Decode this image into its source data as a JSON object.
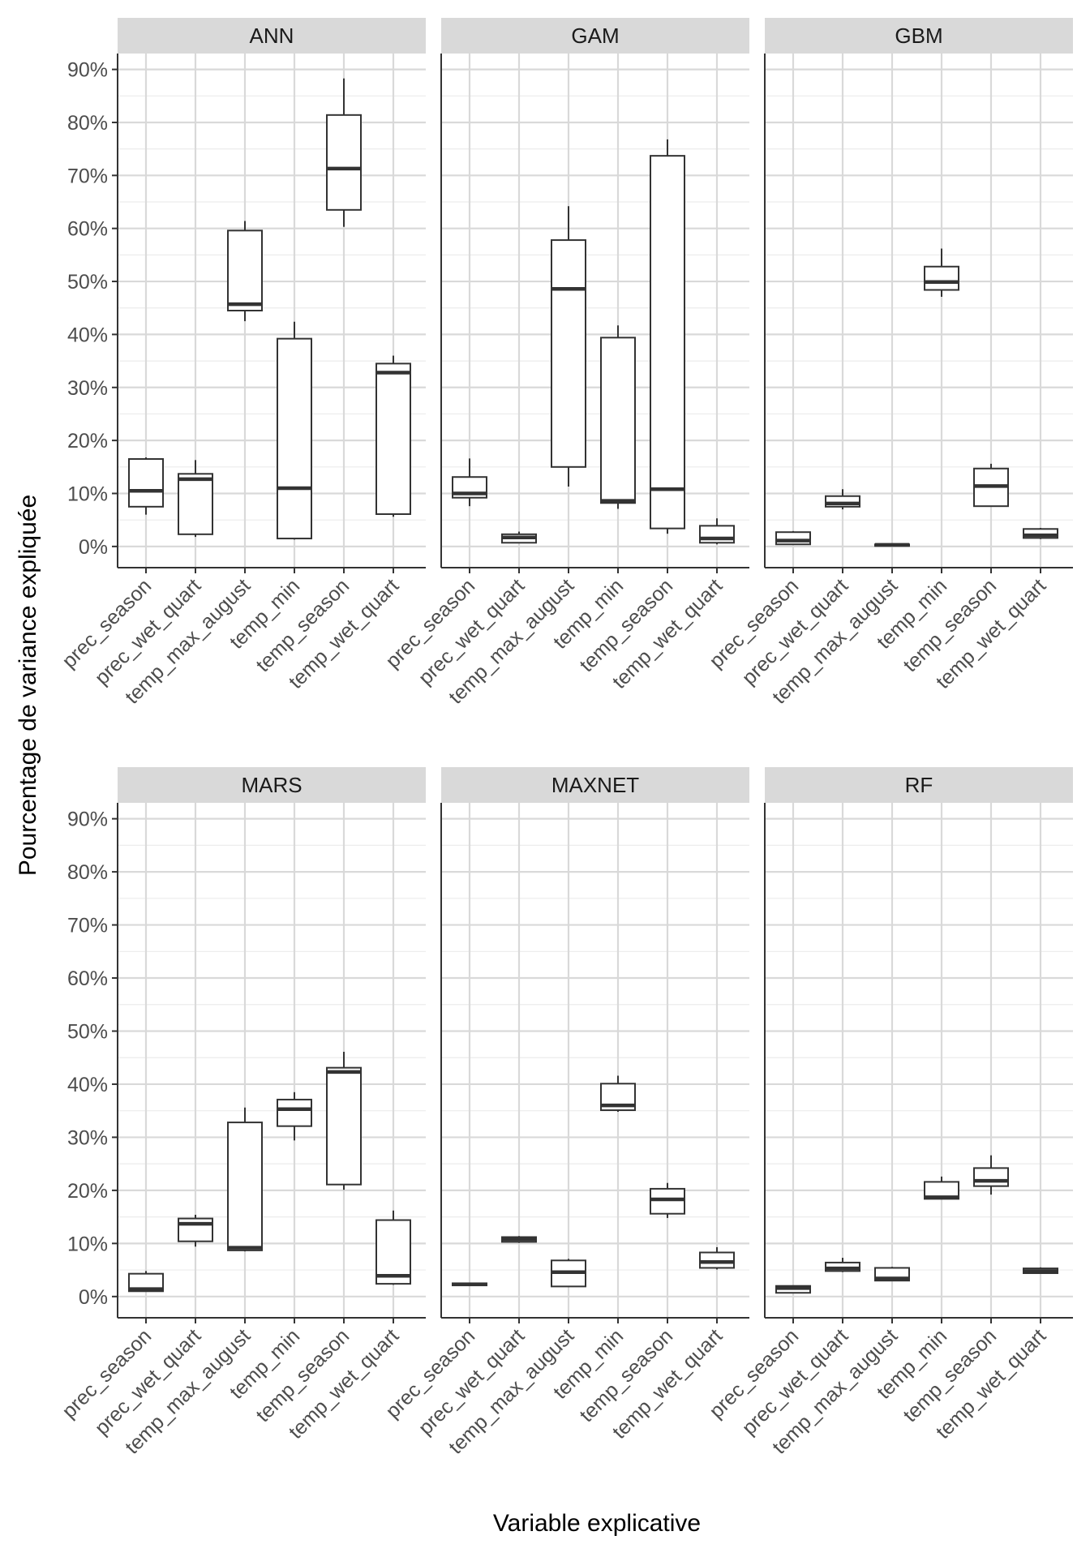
{
  "chart_data": {
    "type": "boxplot",
    "facet_layout": "2 rows x 3 columns",
    "xlabel": "Variable explicative",
    "ylabel": "Pourcentage de variance expliquée",
    "ylim": [
      -4,
      93
    ],
    "y_ticks": [
      0,
      10,
      20,
      30,
      40,
      50,
      60,
      70,
      80,
      90
    ],
    "y_tick_labels": [
      "0%",
      "10%",
      "20%",
      "30%",
      "40%",
      "50%",
      "60%",
      "70%",
      "80%",
      "90%"
    ],
    "categories": [
      "prec_season",
      "prec_wet_quart",
      "temp_max_august",
      "temp_min",
      "temp_season",
      "temp_wet_quart"
    ],
    "colors": {
      "box_stroke": "#333333",
      "grid": "#d9d9d9",
      "strip_bg": "#d9d9d9",
      "axis": "#333333"
    },
    "panels": [
      {
        "name": "ANN",
        "boxes": [
          {
            "category": "prec_season",
            "min": 6.0,
            "q1": 7.5,
            "median": 10.5,
            "q3": 16.5,
            "max": 16.8
          },
          {
            "category": "prec_wet_quart",
            "min": 1.8,
            "q1": 2.3,
            "median": 12.7,
            "q3": 13.7,
            "max": 16.3
          },
          {
            "category": "temp_max_august",
            "min": 42.5,
            "q1": 44.5,
            "median": 45.7,
            "q3": 59.6,
            "max": 61.4
          },
          {
            "category": "temp_min",
            "min": 1.3,
            "q1": 1.5,
            "median": 11.0,
            "q3": 39.2,
            "max": 42.4
          },
          {
            "category": "temp_season",
            "min": 60.3,
            "q1": 63.5,
            "median": 71.3,
            "q3": 81.4,
            "max": 88.3
          },
          {
            "category": "temp_wet_quart",
            "min": 5.6,
            "q1": 6.1,
            "median": 32.8,
            "q3": 34.5,
            "max": 36.0
          }
        ]
      },
      {
        "name": "GAM",
        "boxes": [
          {
            "category": "prec_season",
            "min": 7.6,
            "q1": 9.2,
            "median": 10.0,
            "q3": 13.1,
            "max": 16.6
          },
          {
            "category": "prec_wet_quart",
            "min": 0.6,
            "q1": 0.7,
            "median": 1.7,
            "q3": 2.3,
            "max": 2.8
          },
          {
            "category": "temp_max_august",
            "min": 11.3,
            "q1": 15.0,
            "median": 48.6,
            "q3": 57.8,
            "max": 64.2
          },
          {
            "category": "temp_min",
            "min": 7.1,
            "q1": 8.2,
            "median": 8.6,
            "q3": 39.4,
            "max": 41.7
          },
          {
            "category": "temp_season",
            "min": 2.4,
            "q1": 3.4,
            "median": 10.8,
            "q3": 73.7,
            "max": 76.8
          },
          {
            "category": "temp_wet_quart",
            "min": 0.4,
            "q1": 0.7,
            "median": 1.5,
            "q3": 3.9,
            "max": 5.3
          }
        ]
      },
      {
        "name": "GBM",
        "boxes": [
          {
            "category": "prec_season",
            "min": 0.3,
            "q1": 0.4,
            "median": 1.1,
            "q3": 2.7,
            "max": 2.9
          },
          {
            "category": "prec_wet_quart",
            "min": 7.0,
            "q1": 7.5,
            "median": 8.1,
            "q3": 9.5,
            "max": 10.8
          },
          {
            "category": "temp_max_august",
            "min": 0.1,
            "q1": 0.1,
            "median": 0.3,
            "q3": 0.4,
            "max": 0.5
          },
          {
            "category": "temp_min",
            "min": 47.1,
            "q1": 48.4,
            "median": 49.9,
            "q3": 52.8,
            "max": 56.2
          },
          {
            "category": "temp_season",
            "min": 7.5,
            "q1": 7.6,
            "median": 11.4,
            "q3": 14.7,
            "max": 15.6
          },
          {
            "category": "temp_wet_quart",
            "min": 1.4,
            "q1": 1.6,
            "median": 2.1,
            "q3": 3.3,
            "max": 3.5
          }
        ]
      },
      {
        "name": "MARS",
        "boxes": [
          {
            "category": "prec_season",
            "min": 0.9,
            "q1": 1.0,
            "median": 1.4,
            "q3": 4.3,
            "max": 4.8
          },
          {
            "category": "prec_wet_quart",
            "min": 9.4,
            "q1": 10.4,
            "median": 13.7,
            "q3": 14.7,
            "max": 15.4
          },
          {
            "category": "temp_max_august",
            "min": 8.5,
            "q1": 8.7,
            "median": 9.2,
            "q3": 32.8,
            "max": 35.6
          },
          {
            "category": "temp_min",
            "min": 29.4,
            "q1": 32.1,
            "median": 35.3,
            "q3": 37.1,
            "max": 38.5
          },
          {
            "category": "temp_season",
            "min": 20.1,
            "q1": 21.1,
            "median": 42.3,
            "q3": 43.1,
            "max": 46.1
          },
          {
            "category": "temp_wet_quart",
            "min": 2.2,
            "q1": 2.4,
            "median": 3.9,
            "q3": 14.4,
            "max": 16.2
          }
        ]
      },
      {
        "name": "MAXNET",
        "boxes": [
          {
            "category": "prec_season",
            "min": 2.0,
            "q1": 2.1,
            "median": 2.3,
            "q3": 2.5,
            "max": 2.6
          },
          {
            "category": "prec_wet_quart",
            "min": 10.1,
            "q1": 10.3,
            "median": 10.8,
            "q3": 11.2,
            "max": 11.4
          },
          {
            "category": "temp_max_august",
            "min": 1.8,
            "q1": 1.9,
            "median": 4.6,
            "q3": 6.8,
            "max": 7.1
          },
          {
            "category": "temp_min",
            "min": 34.8,
            "q1": 35.1,
            "median": 36.0,
            "q3": 40.1,
            "max": 41.6
          },
          {
            "category": "temp_season",
            "min": 14.8,
            "q1": 15.6,
            "median": 18.3,
            "q3": 20.3,
            "max": 21.4
          },
          {
            "category": "temp_wet_quart",
            "min": 5.1,
            "q1": 5.4,
            "median": 6.5,
            "q3": 8.3,
            "max": 9.3
          }
        ]
      },
      {
        "name": "RF",
        "boxes": [
          {
            "category": "prec_season",
            "min": 0.6,
            "q1": 0.7,
            "median": 1.6,
            "q3": 2.0,
            "max": 2.1
          },
          {
            "category": "prec_wet_quart",
            "min": 4.6,
            "q1": 4.8,
            "median": 5.3,
            "q3": 6.4,
            "max": 7.3
          },
          {
            "category": "temp_max_august",
            "min": 2.9,
            "q1": 3.0,
            "median": 3.4,
            "q3": 5.4,
            "max": 5.6
          },
          {
            "category": "temp_min",
            "min": 18.3,
            "q1": 18.4,
            "median": 18.7,
            "q3": 21.6,
            "max": 22.6
          },
          {
            "category": "temp_season",
            "min": 19.2,
            "q1": 20.8,
            "median": 21.8,
            "q3": 24.2,
            "max": 26.6
          },
          {
            "category": "temp_wet_quart",
            "min": 4.3,
            "q1": 4.4,
            "median": 4.8,
            "q3": 5.3,
            "max": 5.5
          }
        ]
      }
    ]
  }
}
